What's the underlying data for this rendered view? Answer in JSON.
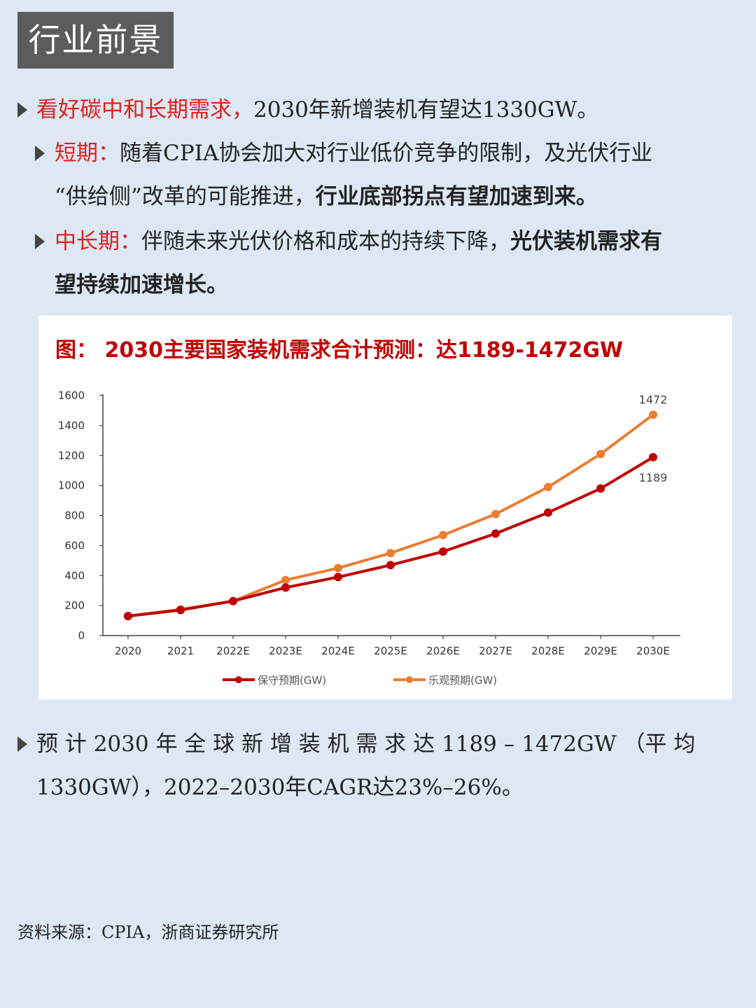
{
  "header": {
    "title": "行业前景"
  },
  "bullets": {
    "b1": {
      "red": "看好碳中和长期需求，",
      "rest": "2030年新增装机有望达1330GW。"
    },
    "b2": {
      "red": "短期：",
      "line1": "随着CPIA协会加大对行业低价竞争的限制，及光伏行业",
      "line2_plain": "“供给侧”改革的可能推进，",
      "line2_bold": "行业底部拐点有望加速到来。"
    },
    "b3": {
      "red": "中长期：",
      "line1_plain": "伴随未来光伏价格和成本的持续下降，",
      "line1_bold": "光伏装机需求有",
      "line2_bold": "望持续加速增长。"
    },
    "b4": {
      "line1": "预 计 2030 年 全 球 新 增 装 机 需 求 达 1189 – 1472GW （平 均",
      "line2": "1330GW），2022–2030年CAGR达23%–26%。"
    }
  },
  "chart_data": {
    "type": "line",
    "title": "图： 2030主要国家装机需求合计预测：达1189-1472GW",
    "categories": [
      "2020",
      "2021",
      "2022E",
      "2023E",
      "2024E",
      "2025E",
      "2026E",
      "2027E",
      "2028E",
      "2029E",
      "2030E"
    ],
    "series": [
      {
        "name": "保守预期(GW)",
        "color": "#c00000",
        "values": [
          130,
          170,
          230,
          320,
          390,
          470,
          560,
          680,
          820,
          980,
          1189
        ]
      },
      {
        "name": "乐观预期(GW)",
        "color": "#ed7d31",
        "values": [
          130,
          175,
          230,
          370,
          450,
          550,
          670,
          810,
          990,
          1210,
          1472
        ]
      }
    ],
    "data_labels": [
      {
        "series": 1,
        "index": 10,
        "text": "1472",
        "pos": "above"
      },
      {
        "series": 0,
        "index": 10,
        "text": "1189",
        "pos": "below"
      }
    ],
    "ylim": [
      0,
      1600
    ],
    "yticks": [
      0,
      200,
      400,
      600,
      800,
      1000,
      1200,
      1400,
      1600
    ],
    "legend_position": "bottom",
    "grid": false
  },
  "source": "资料来源：CPIA，浙商证券研究所"
}
